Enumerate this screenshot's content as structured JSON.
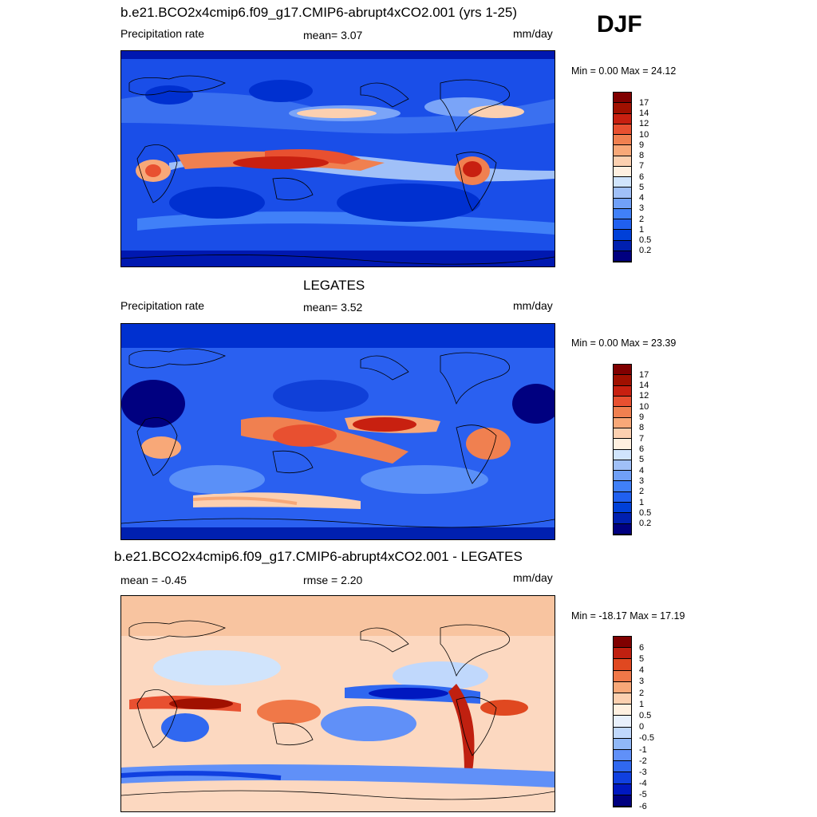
{
  "season": "DJF",
  "panels": [
    {
      "title": "b.e21.BCO2x4cmip6.f09_g17.CMIP6-abrupt4xCO2.001 (yrs 1-25)",
      "left_label": "Precipitation rate",
      "center_label": "mean=   3.07",
      "units": "mm/day",
      "min_max": "Min =   0.00 Max =  24.12",
      "colorbar": {
        "colors": [
          "#000080",
          "#0020b0",
          "#0040d8",
          "#2060f0",
          "#4080f8",
          "#70a0f8",
          "#a0c0f8",
          "#d0e4fc",
          "#fff0e0",
          "#fcd0b0",
          "#f8a878",
          "#f08050",
          "#e85030",
          "#c82010",
          "#a01000",
          "#800000"
        ],
        "ticks": [
          "0.2",
          "0.5",
          "1",
          "2",
          "3",
          "4",
          "5",
          "6",
          "7",
          "8",
          "9",
          "10",
          "12",
          "14",
          "17"
        ]
      }
    },
    {
      "title": "LEGATES",
      "left_label": "Precipitation rate",
      "center_label": "mean=   3.52",
      "units": "mm/day",
      "min_max": "Min =   0.00 Max =  23.39",
      "colorbar": {
        "colors": [
          "#000080",
          "#0020b0",
          "#0040d8",
          "#2060f0",
          "#4080f8",
          "#70a0f8",
          "#a0c0f8",
          "#d0e4fc",
          "#fff0e0",
          "#fcd0b0",
          "#f8a878",
          "#f08050",
          "#e85030",
          "#c82010",
          "#a01000",
          "#800000"
        ],
        "ticks": [
          "0.2",
          "0.5",
          "1",
          "2",
          "3",
          "4",
          "5",
          "6",
          "7",
          "8",
          "9",
          "10",
          "12",
          "14",
          "17"
        ]
      }
    },
    {
      "title": "b.e21.BCO2x4cmip6.f09_g17.CMIP6-abrupt4xCO2.001 - LEGATES",
      "left_label": "mean =  -0.45",
      "center_label": "rmse =   2.20",
      "units": "mm/day",
      "min_max": "Min = -18.17 Max =  17.19",
      "colorbar": {
        "colors": [
          "#000080",
          "#0018c0",
          "#1040e0",
          "#3068f0",
          "#6090f8",
          "#90b8f8",
          "#c0d8fc",
          "#e8f0fc",
          "#fff0e0",
          "#fcd0b0",
          "#f8a878",
          "#f07848",
          "#e04820",
          "#c02010",
          "#800000"
        ],
        "ticks": [
          "-6",
          "-5",
          "-4",
          "-3",
          "-2",
          "-1",
          "-0.5",
          "0",
          "0.5",
          "1",
          "2",
          "3",
          "4",
          "5",
          "6"
        ]
      }
    }
  ]
}
